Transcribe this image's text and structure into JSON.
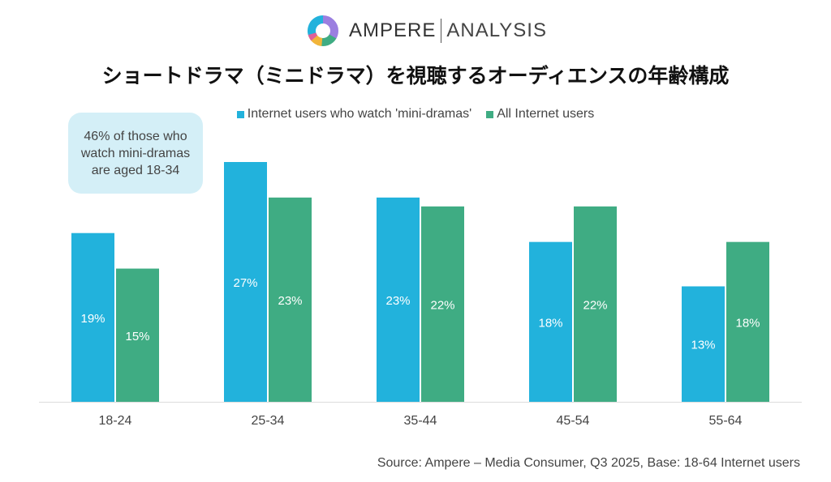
{
  "brand": {
    "name_left": "AMPERE",
    "name_right": "ANALYSIS",
    "logo_icon": "ring-logo-icon"
  },
  "callout": {
    "line1": "46% of those who",
    "line2": "watch mini-dramas",
    "line3": "are aged 18-34"
  },
  "source": "Source: Ampere – Media Consumer, Q3 2025, Base: 18-64 Internet users",
  "chart_data": {
    "type": "bar",
    "title": "ショートドラマ（ミニドラマ）を視聴するオーディエンスの年齢構成",
    "xlabel": "",
    "ylabel": "",
    "ylim": [
      0,
      27
    ],
    "grid": false,
    "legend_position": "top-center",
    "categories": [
      "18-24",
      "25-34",
      "35-44",
      "45-54",
      "55-64"
    ],
    "series": [
      {
        "name": "Internet users who watch 'mini-dramas'",
        "color": "#22b2dc",
        "values": [
          19,
          27,
          23,
          18,
          13
        ],
        "labels": [
          "19%",
          "27%",
          "23%",
          "18%",
          "13%"
        ]
      },
      {
        "name": "All Internet users",
        "color": "#3fac83",
        "values": [
          15,
          23,
          22,
          22,
          18
        ],
        "labels": [
          "15%",
          "23%",
          "22%",
          "22%",
          "18%"
        ]
      }
    ]
  }
}
